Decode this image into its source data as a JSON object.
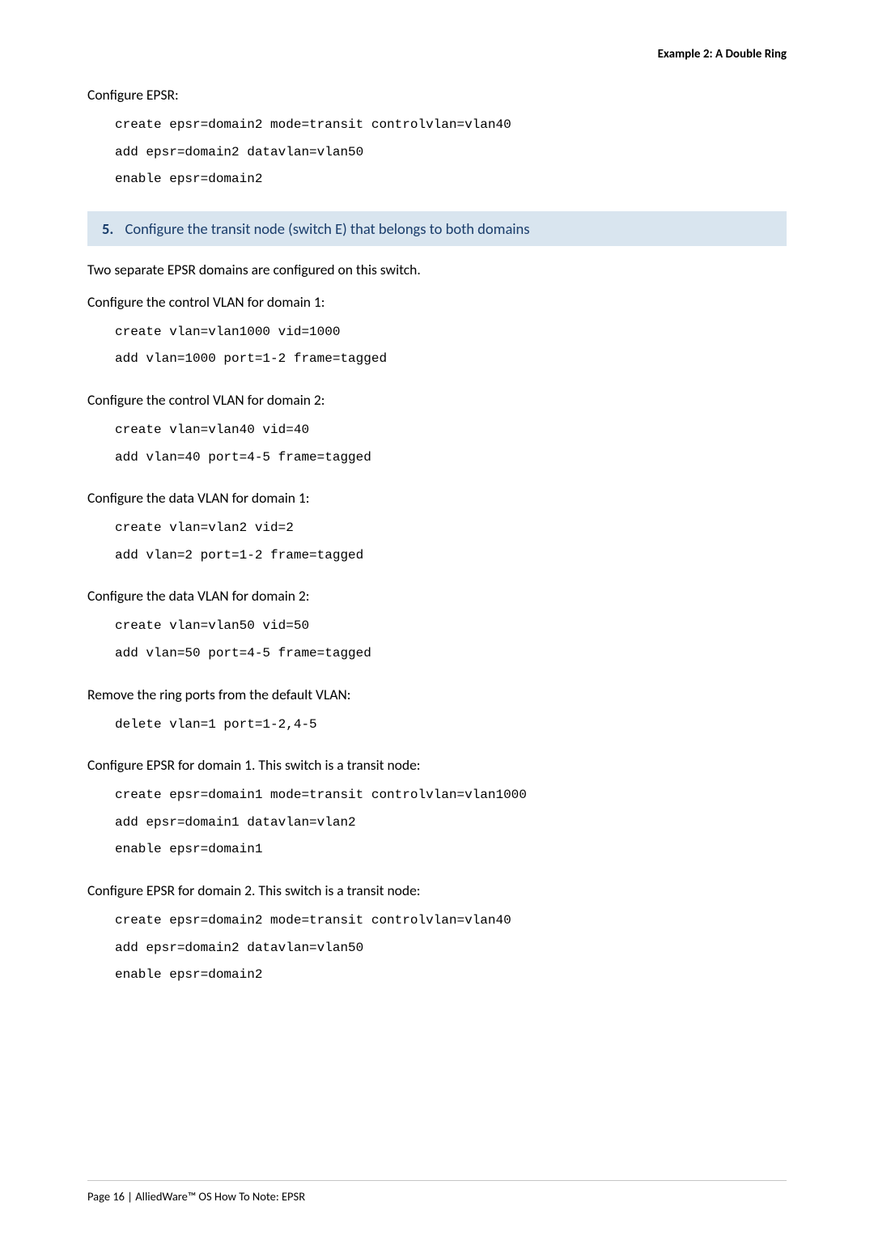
{
  "header": {
    "rightTitle": "Example 2: A Double Ring"
  },
  "sec1": {
    "intro": "Configure EPSR:",
    "code1": "create epsr=domain2 mode=transit controlvlan=vlan40",
    "code2": "add epsr=domain2 datavlan=vlan50",
    "code3": "enable epsr=domain2"
  },
  "step5": {
    "num": "5.",
    "title": "Configure the transit node (switch E) that belongs to both domains"
  },
  "afterStep": "Two separate EPSR domains are configured on this switch.",
  "sec2": {
    "intro": "Configure the control VLAN for domain 1:",
    "code1": "create vlan=vlan1000 vid=1000",
    "code2": "add vlan=1000 port=1-2 frame=tagged"
  },
  "sec3": {
    "intro": "Configure the control VLAN for domain 2:",
    "code1": "create vlan=vlan40 vid=40",
    "code2": "add vlan=40 port=4-5 frame=tagged"
  },
  "sec4": {
    "intro": "Configure the data VLAN for domain 1:",
    "code1": "create vlan=vlan2 vid=2",
    "code2": "add vlan=2 port=1-2 frame=tagged"
  },
  "sec5": {
    "intro": "Configure the data VLAN for domain 2:",
    "code1": "create vlan=vlan50 vid=50",
    "code2": "add vlan=50 port=4-5 frame=tagged"
  },
  "sec6": {
    "intro": "Remove the ring ports from the default VLAN:",
    "code1": "delete vlan=1 port=1-2,4-5"
  },
  "sec7": {
    "intro": "Configure EPSR for domain 1. This switch is a transit node:",
    "code1": "create epsr=domain1 mode=transit controlvlan=vlan1000",
    "code2": "add epsr=domain1 datavlan=vlan2",
    "code3": "enable epsr=domain1"
  },
  "sec8": {
    "intro": "Configure EPSR for domain 2. This switch is a transit node:",
    "code1": "create epsr=domain2 mode=transit controlvlan=vlan40",
    "code2": "add epsr=domain2 datavlan=vlan50",
    "code3": "enable epsr=domain2"
  },
  "footer": {
    "text": "Page 16 | AlliedWare™ OS How To Note: EPSR"
  }
}
